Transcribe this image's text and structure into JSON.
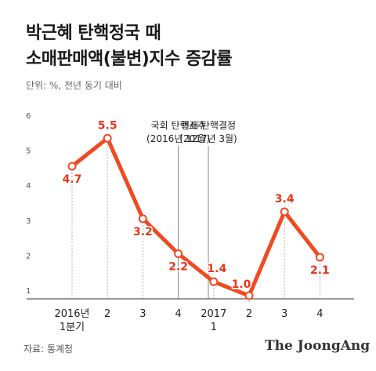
{
  "header": {
    "title_line1": "박근혜 탄핵정국 때",
    "title_line2": "소매판매액(불변)지수 증감률",
    "subtitle": "단위: %, 전년 동기 대비"
  },
  "footer": {
    "source": "자료: 통계청",
    "brand": "The JoongAng"
  },
  "colors": {
    "line": "#f04a23",
    "point_fill": "#ffffff",
    "label": "#e8361a",
    "axis": "#333333",
    "grid": "#cccccc",
    "marker": "#888888"
  },
  "chart_data": {
    "type": "line",
    "title": "박근혜 탄핵정국 때 소매판매액(불변)지수 증감률",
    "ylabel": "단위: %, 전년 동기 대비",
    "categories": [
      "2016년 1분기",
      "2",
      "3",
      "4",
      "2017 1",
      "2",
      "3",
      "4"
    ],
    "category_lines": [
      [
        "2016년",
        "1분기"
      ],
      [
        "2"
      ],
      [
        "3"
      ],
      [
        "4"
      ],
      [
        "2017",
        "1"
      ],
      [
        "2"
      ],
      [
        "3"
      ],
      [
        "4"
      ]
    ],
    "x_positions": [
      0,
      1,
      2,
      3,
      4,
      5,
      6,
      7
    ],
    "values": [
      4.7,
      5.5,
      3.2,
      2.2,
      1.4,
      1.0,
      3.4,
      2.1
    ],
    "value_labels": [
      "4.7",
      "5.5",
      "3.2",
      "2.2",
      "1.4",
      "1.0",
      "3.4",
      "2.1"
    ],
    "ylim": [
      1,
      6
    ],
    "yticks": [
      1,
      2,
      3,
      4,
      5,
      6
    ],
    "grid": false,
    "annotations": [
      {
        "x": 3,
        "line1": "국회 탄핵소추",
        "line2": "(2016년 12월)"
      },
      {
        "x": 3.85,
        "line1": "헌재 탄핵결정",
        "line2": "(2017년 3월)"
      }
    ]
  }
}
